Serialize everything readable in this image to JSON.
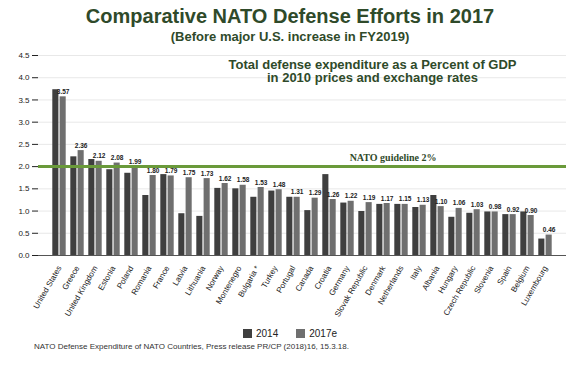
{
  "chart_data": {
    "type": "bar",
    "title": "Comparative NATO Defense Efforts in 2017",
    "subtitle": "(Before major U.S. increase in FY2019)",
    "annotation": "Total defense expenditure as a Percent of GDP in 2010 prices and exchange rates",
    "caption": "NATO Defense Expenditure of NATO Countries, Press release PR/CP (2018)16, 15.3.18.",
    "reference_line": {
      "value": 2,
      "label": "NATO guideline 2%",
      "color": "#6a9a3a"
    },
    "categories": [
      "United States",
      "Greece",
      "United Kingdom",
      "Estonia",
      "Poland",
      "Romania",
      "France",
      "Latvia",
      "Lithuania",
      "Norway",
      "Montenegro",
      "Bulgaria *",
      "Turkey",
      "Portugal",
      "Canada",
      "Croatia",
      "Germany",
      "Slovak Republic",
      "Denmark",
      "Netherlands",
      "Italy",
      "Albania",
      "Hungary",
      "Czech Republic",
      "Slovenia",
      "Spain",
      "Belgium",
      "Luxembourg"
    ],
    "series": [
      {
        "name": "2014",
        "color": "#3f3f3f",
        "values": [
          3.73,
          2.22,
          2.16,
          1.93,
          1.85,
          1.35,
          1.82,
          0.94,
          0.88,
          1.51,
          1.5,
          1.31,
          1.45,
          1.31,
          1.01,
          1.82,
          1.18,
          0.99,
          1.15,
          1.15,
          1.08,
          1.35,
          0.86,
          0.95,
          0.98,
          0.92,
          0.98,
          0.37
        ]
      },
      {
        "name": "2017e",
        "color": "#6f6f6f",
        "values": [
          3.57,
          2.36,
          2.12,
          2.08,
          1.99,
          1.8,
          1.79,
          1.75,
          1.73,
          1.62,
          1.58,
          1.53,
          1.48,
          1.31,
          1.29,
          1.26,
          1.22,
          1.19,
          1.17,
          1.15,
          1.13,
          1.1,
          1.06,
          1.03,
          0.98,
          0.92,
          0.9,
          0.46
        ],
        "value_labels": [
          "3.57",
          "2.36",
          "2.12",
          "2.08",
          "1.99",
          "1.80",
          "1.79",
          "1.75",
          "1.73",
          "1.62",
          "1.58",
          "1.53",
          "1.48",
          "1.31",
          "1.29",
          "1.26",
          "1.22",
          "1.19",
          "1.17",
          "1.15",
          "1.13",
          "1.10",
          "1.06",
          "1.03",
          "0.98",
          "0.92",
          "0.90",
          "0.46"
        ]
      }
    ],
    "ylim": [
      0,
      4.5
    ],
    "yticks": [
      {
        "value": 0,
        "label": "0.0"
      },
      {
        "value": 0.5,
        "label": "0.5"
      },
      {
        "value": 1,
        "label": "1.0"
      },
      {
        "value": 1.5,
        "label": "1.5"
      },
      {
        "value": 2,
        "label": "2.0"
      },
      {
        "value": 2.5,
        "label": "2.5"
      },
      {
        "value": 3,
        "label": "3.0"
      },
      {
        "value": 3.5,
        "label": "3.5"
      },
      {
        "value": 4,
        "label": "4.0"
      },
      {
        "value": 4.5,
        "label": "4.5"
      }
    ],
    "grid": true,
    "data_labels": true,
    "legend": "bottom"
  }
}
